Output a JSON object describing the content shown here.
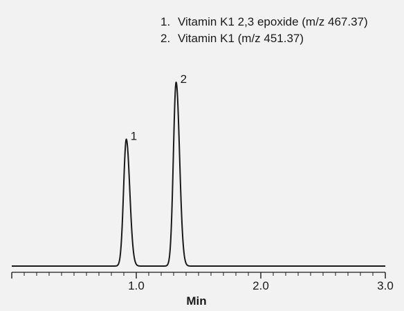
{
  "chart_data": {
    "type": "line",
    "title": "",
    "xlabel": "Min",
    "ylabel": "",
    "xlim": [
      0.0,
      3.0
    ],
    "x_ticks": [
      "1.0",
      "2.0",
      "3.0"
    ],
    "x_tick_values": [
      1.0,
      2.0,
      3.0
    ],
    "minor_tick_step": 0.1,
    "legend": [
      {
        "number": "1.",
        "text": "Vitamin K1 2,3 epoxide (m/z 467.37)"
      },
      {
        "number": "2.",
        "text": "Vitamin K1 (m/z 451.37)"
      }
    ],
    "peaks": [
      {
        "label": "1",
        "retention_time": 0.92,
        "relative_height": 0.69
      },
      {
        "label": "2",
        "retention_time": 1.32,
        "relative_height": 1.0
      }
    ],
    "line_color": "#1a1a1a",
    "background": "#f2f2f2",
    "grid": false
  }
}
